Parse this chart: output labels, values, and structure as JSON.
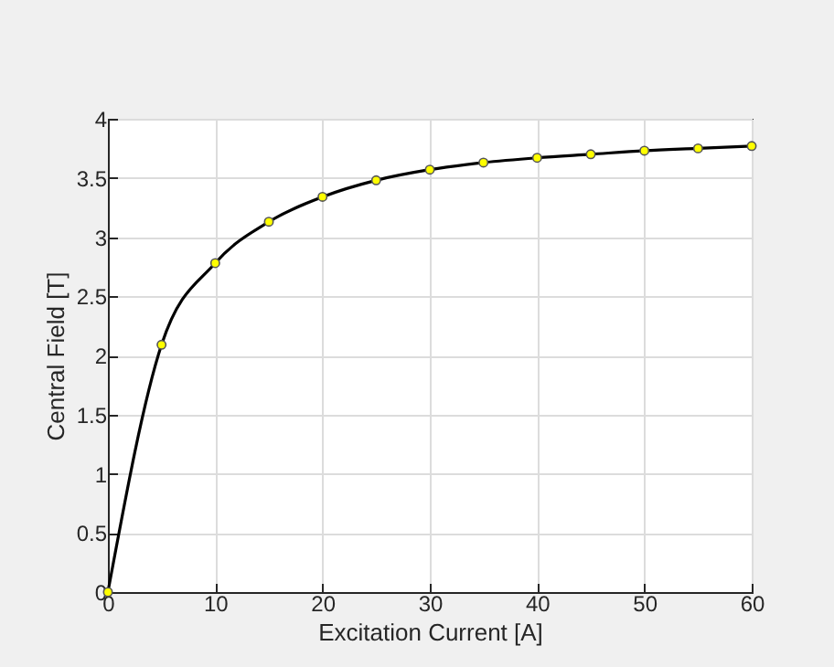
{
  "chart_data": {
    "type": "line",
    "xlabel": "Excitation Current [A]",
    "ylabel": "Central Field [T]",
    "x": [
      0,
      5,
      10,
      15,
      20,
      25,
      30,
      35,
      40,
      45,
      50,
      55,
      60
    ],
    "series": [
      {
        "type": "line",
        "color": "#000000",
        "marker": "none",
        "values": [
          0,
          2.09,
          2.78,
          3.13,
          3.34,
          3.48,
          3.57,
          3.63,
          3.67,
          3.7,
          3.73,
          3.75,
          3.77
        ]
      },
      {
        "type": "scatter",
        "color": "#ffff00",
        "marker": "circle",
        "values": [
          0,
          2.09,
          2.78,
          3.13,
          3.34,
          3.48,
          3.57,
          3.63,
          3.67,
          3.7,
          3.73,
          3.75,
          3.77
        ]
      }
    ],
    "xlim": [
      0,
      60
    ],
    "xticks": [
      0,
      10,
      20,
      30,
      40,
      50,
      60
    ],
    "ylim": [
      0,
      4
    ],
    "yticks": [
      0,
      0.5,
      1,
      1.5,
      2,
      2.5,
      3,
      3.5,
      4
    ],
    "grid": true
  }
}
